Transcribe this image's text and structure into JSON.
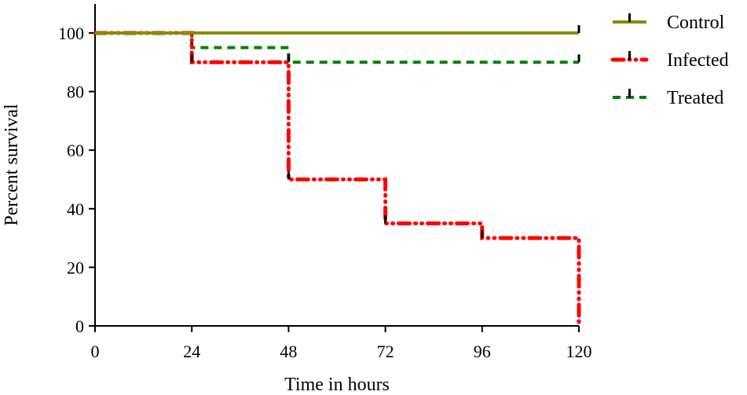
{
  "chart_data": {
    "type": "line",
    "step": true,
    "title": "",
    "xlabel": "Time in hours",
    "ylabel": "Percent survival",
    "xlim": [
      0,
      120
    ],
    "ylim": [
      0,
      100
    ],
    "xticks": [
      0,
      24,
      48,
      72,
      96,
      120
    ],
    "yticks": [
      0,
      20,
      40,
      60,
      80,
      100
    ],
    "grid": false,
    "legend_position": "top-right",
    "series": [
      {
        "name": "Control",
        "color": "#8a8a00",
        "style": "solid",
        "x": [
          0,
          120
        ],
        "y": [
          100,
          100
        ]
      },
      {
        "name": "Infected",
        "color": "#ff0000",
        "style": "dash-dot-dot",
        "x": [
          0,
          24,
          48,
          72,
          96,
          120
        ],
        "y": [
          100,
          90,
          50,
          35,
          30,
          0
        ]
      },
      {
        "name": "Treated",
        "color": "#008000",
        "style": "dashed",
        "x": [
          0,
          24,
          48,
          120
        ],
        "y": [
          100,
          95,
          90,
          90
        ]
      }
    ]
  }
}
